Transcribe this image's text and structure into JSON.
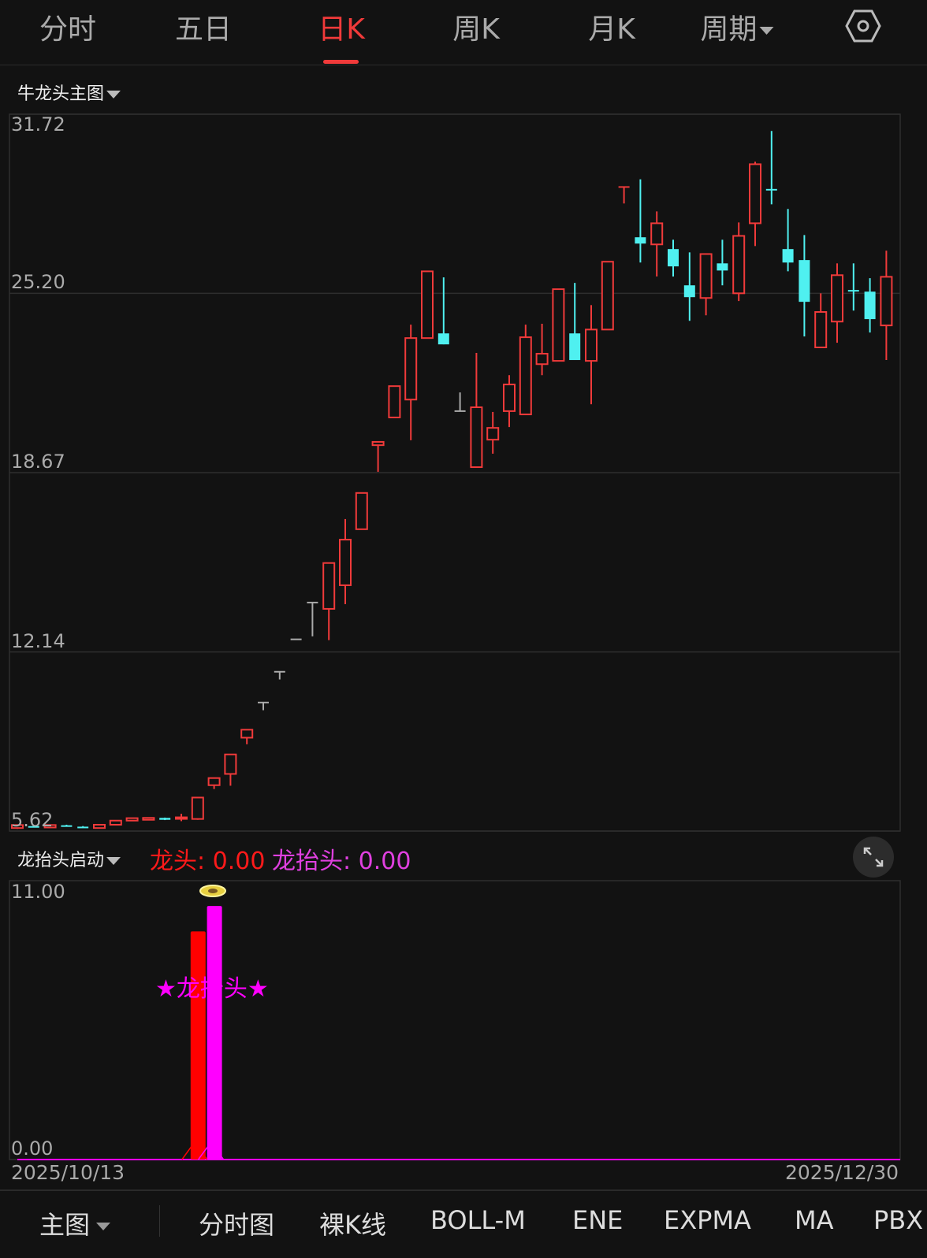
{
  "tabs": [
    {
      "label": "分时",
      "active": false
    },
    {
      "label": "五日",
      "active": false
    },
    {
      "label": "日K",
      "active": true
    },
    {
      "label": "周K",
      "active": false
    },
    {
      "label": "月K",
      "active": false
    },
    {
      "label": "周期",
      "active": false,
      "dropdown": true
    }
  ],
  "settings_icon": "hexagon-settings-icon",
  "main_panel": {
    "title": "牛龙头主图"
  },
  "sub_panel": {
    "title": "龙抬头启动",
    "legend": [
      {
        "label": "龙头: 0.00",
        "color": "#ff1a1a"
      },
      {
        "label": "龙抬头: 0.00",
        "color": "#e040e0"
      }
    ],
    "annotation": "★龙抬头★",
    "expand_icon": "expand-arrows-icon",
    "coin_icon": "gold-coin-icon"
  },
  "colors": {
    "up": "#f03a3a",
    "down": "#4ff0f0",
    "flat": "#aaaaaa",
    "accent": "#f03a3a",
    "magenta": "#ff00ff",
    "red_bar": "#ff0000"
  },
  "chart_data": [
    {
      "type": "candlestick",
      "ylim": [
        5.62,
        31.72
      ],
      "y_ticks": [
        "31.72",
        "25.20",
        "18.67",
        "12.14",
        "5.62"
      ],
      "x_labels": [
        "2025/10/13",
        "2025/12/30"
      ],
      "grid": true,
      "ohlc": [
        [
          5.73,
          5.85,
          5.7,
          5.84
        ],
        [
          5.8,
          5.82,
          5.76,
          5.78
        ],
        [
          5.75,
          5.85,
          5.74,
          5.84
        ],
        [
          5.83,
          5.85,
          5.79,
          5.8
        ],
        [
          5.78,
          5.8,
          5.74,
          5.75
        ],
        [
          5.73,
          5.86,
          5.72,
          5.85
        ],
        [
          5.85,
          6.01,
          5.84,
          6.0
        ],
        [
          6.0,
          6.1,
          5.99,
          6.09
        ],
        [
          6.03,
          6.11,
          6.02,
          6.1
        ],
        [
          6.1,
          6.11,
          6.02,
          6.03
        ],
        [
          6.08,
          6.25,
          5.98,
          6.12
        ],
        [
          6.06,
          6.84,
          6.03,
          6.84
        ],
        [
          7.29,
          7.55,
          7.15,
          7.55
        ],
        [
          7.7,
          8.41,
          7.27,
          8.41
        ],
        [
          9.02,
          9.31,
          8.78,
          9.31
        ],
        [
          10.3,
          10.3,
          10.02,
          10.3
        ],
        [
          11.42,
          11.42,
          11.14,
          11.42
        ],
        [
          12.6,
          12.6,
          12.6,
          12.6
        ],
        [
          13.94,
          13.94,
          12.71,
          13.94
        ],
        [
          13.71,
          15.38,
          12.57,
          15.38
        ],
        [
          14.57,
          16.98,
          13.88,
          16.23
        ],
        [
          16.61,
          17.93,
          16.61,
          17.93
        ],
        [
          19.67,
          19.79,
          18.7,
          19.79
        ],
        [
          20.68,
          21.82,
          20.68,
          21.82
        ],
        [
          21.33,
          24.06,
          19.85,
          23.57
        ],
        [
          23.57,
          26.0,
          23.57,
          26.0
        ],
        [
          23.74,
          25.78,
          23.34,
          23.34
        ],
        [
          20.91,
          21.59,
          20.91,
          20.91
        ],
        [
          18.87,
          23.03,
          18.87,
          21.05
        ],
        [
          19.87,
          20.88,
          19.36,
          20.3
        ],
        [
          20.91,
          22.22,
          20.33,
          21.88
        ],
        [
          20.79,
          24.06,
          20.79,
          23.6
        ],
        [
          22.62,
          24.09,
          22.22,
          23.0
        ],
        [
          22.74,
          25.35,
          22.74,
          25.35
        ],
        [
          23.74,
          25.58,
          22.77,
          22.77
        ],
        [
          22.74,
          24.77,
          21.16,
          23.88
        ],
        [
          23.88,
          26.35,
          23.88,
          26.35
        ],
        [
          29.07,
          29.07,
          28.47,
          29.07
        ],
        [
          27.24,
          29.35,
          26.32,
          27.01
        ],
        [
          26.98,
          28.18,
          25.81,
          27.75
        ],
        [
          26.81,
          27.15,
          25.81,
          26.18
        ],
        [
          25.49,
          26.69,
          24.2,
          25.06
        ],
        [
          25.03,
          26.63,
          24.4,
          26.63
        ],
        [
          26.29,
          27.15,
          25.49,
          26.03
        ],
        [
          25.2,
          27.78,
          24.92,
          27.29
        ],
        [
          27.75,
          29.99,
          26.92,
          29.9
        ],
        [
          29.0,
          31.11,
          28.44,
          28.95
        ],
        [
          26.81,
          28.27,
          26.0,
          26.32
        ],
        [
          26.41,
          27.32,
          23.63,
          24.89
        ],
        [
          23.23,
          25.2,
          23.23,
          24.52
        ],
        [
          24.17,
          26.29,
          23.4,
          25.86
        ],
        [
          25.32,
          26.29,
          24.57,
          25.29
        ],
        [
          25.26,
          25.75,
          23.77,
          24.26
        ],
        [
          24.03,
          26.75,
          22.77,
          25.8
        ]
      ]
    },
    {
      "type": "bar",
      "ylim": [
        0,
        11
      ],
      "y_ticks": [
        "11.00",
        "0.00"
      ],
      "series": [
        {
          "name": "龙头",
          "color": "#ff0000",
          "bars": [
            {
              "index": 11,
              "value": 9.0
            }
          ]
        },
        {
          "name": "龙抬头",
          "color": "#ff00ff",
          "bars": [
            {
              "index": 12,
              "value": 10.0
            }
          ]
        }
      ]
    }
  ],
  "bottom_bar": {
    "main_label": "主图",
    "items": [
      "分时图",
      "裸K线",
      "BOLL-M",
      "ENE",
      "EXPMA",
      "MA",
      "PBX"
    ]
  }
}
